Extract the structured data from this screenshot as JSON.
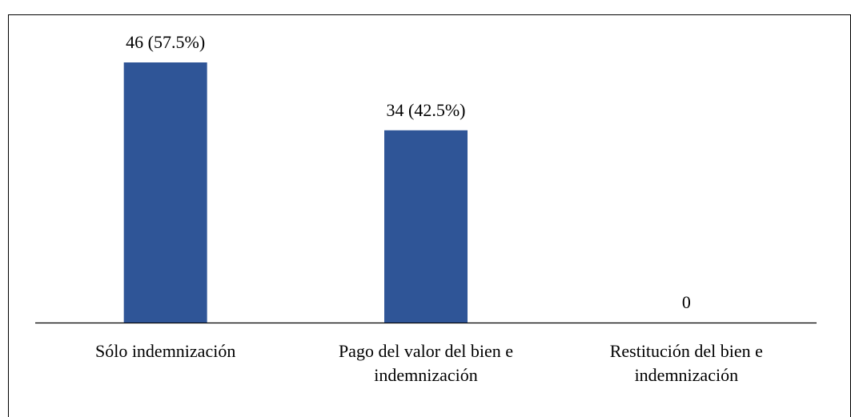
{
  "chart_data": {
    "type": "bar",
    "categories": [
      "Sólo indemnización",
      "Pago del valor del bien e indemnización",
      "Restitución del bien e indemnización"
    ],
    "values": [
      46,
      34,
      0
    ],
    "value_labels": [
      "46 (57.5%)",
      "34 (42.5%)",
      "0"
    ],
    "color": "#2f5597"
  }
}
